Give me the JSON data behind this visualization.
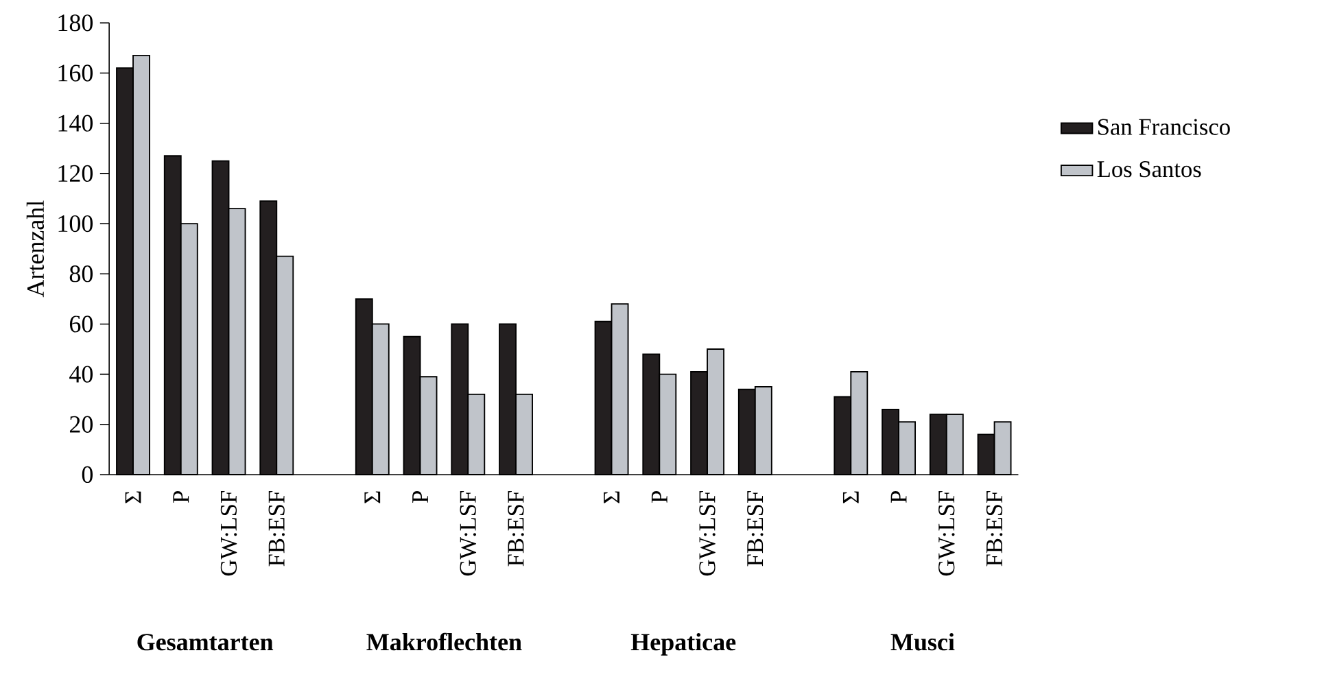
{
  "chart_data": {
    "type": "bar",
    "ylabel": "Artenzahl",
    "categories": [
      "Σ",
      "P",
      "GW:LSF",
      "FB:ESF",
      null,
      "Σ",
      "P",
      "GW:LSF",
      "FB:ESF",
      null,
      "Σ",
      "P",
      "GW:LSF",
      "FB:ESF",
      null,
      "Σ",
      "P",
      "GW:LSF",
      "FB:ESF"
    ],
    "series": [
      {
        "name": "San Francisco",
        "color": "#231f20",
        "values": [
          162,
          127,
          125,
          109,
          null,
          70,
          55,
          60,
          60,
          null,
          61,
          48,
          41,
          34,
          null,
          31,
          26,
          24,
          16
        ]
      },
      {
        "name": "Los Santos",
        "color": "#c0c4ca",
        "values": [
          167,
          100,
          106,
          87,
          null,
          60,
          39,
          32,
          32,
          null,
          68,
          40,
          50,
          35,
          null,
          41,
          21,
          24,
          21
        ]
      }
    ],
    "annotations": [
      "Gesamtarten",
      "Makroflechten",
      "Hepaticae",
      "Musci"
    ],
    "ylim": [
      0,
      180
    ],
    "yticks": [
      0,
      20,
      40,
      60,
      80,
      100,
      120,
      140,
      160,
      180
    ],
    "legend": "right",
    "grid": false
  }
}
